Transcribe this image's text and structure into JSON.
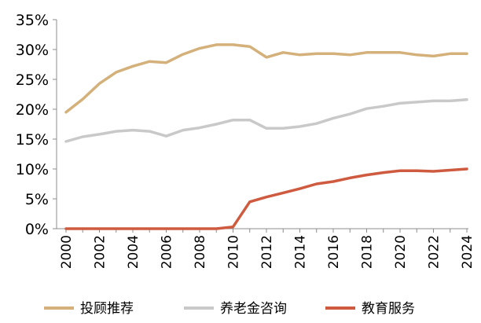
{
  "chart_data": {
    "type": "line",
    "title": "",
    "xlabel": "",
    "ylabel": "",
    "ylim": [
      0,
      35
    ],
    "y_unit": "%",
    "y_ticks": [
      "0%",
      "5%",
      "10%",
      "15%",
      "20%",
      "25%",
      "30%",
      "35%"
    ],
    "x_ticks": [
      "2000",
      "2002",
      "2004",
      "2006",
      "2008",
      "2010",
      "2012",
      "2014",
      "2016",
      "2018",
      "2020",
      "2022",
      "2024"
    ],
    "grid": false,
    "legend_position": "bottom",
    "x": [
      2000,
      2001,
      2002,
      2003,
      2004,
      2005,
      2006,
      2007,
      2008,
      2009,
      2010,
      2011,
      2012,
      2013,
      2014,
      2015,
      2016,
      2017,
      2018,
      2019,
      2020,
      2021,
      2022,
      2023,
      2024
    ],
    "series": [
      {
        "name": "投顾推荐",
        "color": "#D4B07A",
        "values": [
          19.5,
          21.7,
          24.3,
          26.2,
          27.2,
          28.0,
          27.8,
          29.2,
          30.2,
          30.8,
          30.8,
          30.5,
          28.7,
          29.5,
          29.1,
          29.3,
          29.3,
          29.1,
          29.5,
          29.5,
          29.5,
          29.1,
          28.9,
          29.3,
          29.3
        ]
      },
      {
        "name": "养老金咨询",
        "color": "#C9C9C9",
        "values": [
          14.6,
          15.4,
          15.8,
          16.3,
          16.5,
          16.3,
          15.5,
          16.5,
          16.9,
          17.5,
          18.2,
          18.2,
          16.8,
          16.8,
          17.1,
          17.6,
          18.5,
          19.2,
          20.1,
          20.5,
          21.0,
          21.2,
          21.4,
          21.4,
          21.6
        ]
      },
      {
        "name": "教育服务",
        "color": "#CE5B3F",
        "values": [
          0,
          0,
          0,
          0,
          0,
          0,
          0,
          0,
          0,
          0,
          0.3,
          4.5,
          5.3,
          6.0,
          6.7,
          7.5,
          7.9,
          8.5,
          9.0,
          9.4,
          9.7,
          9.7,
          9.6,
          9.8,
          10.0
        ]
      }
    ]
  }
}
